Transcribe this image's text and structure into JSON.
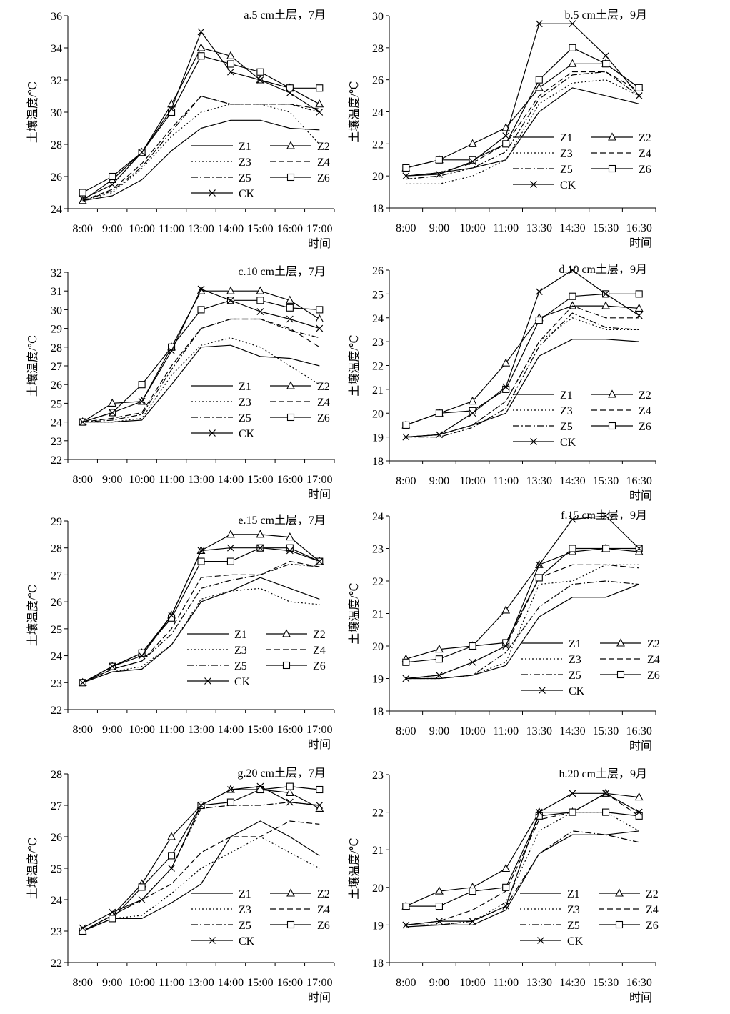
{
  "figure": {
    "x_axis_title": "时间",
    "y_axis_title": "土壤温度/℃",
    "series_names": [
      "Z1",
      "Z2",
      "Z3",
      "Z4",
      "Z5",
      "Z6",
      "CK"
    ],
    "series_styles": [
      {
        "name": "Z1",
        "dash": "solid",
        "marker": "none"
      },
      {
        "name": "Z2",
        "dash": "solid",
        "marker": "triangle"
      },
      {
        "name": "Z3",
        "dash": "dotted",
        "marker": "none"
      },
      {
        "name": "Z4",
        "dash": "dashed",
        "marker": "none"
      },
      {
        "name": "Z5",
        "dash": "dashdot",
        "marker": "none"
      },
      {
        "name": "Z6",
        "dash": "solid",
        "marker": "square"
      },
      {
        "name": "CK",
        "dash": "solid",
        "marker": "x"
      }
    ]
  },
  "chart_data": [
    {
      "panel": "a",
      "type": "line",
      "title": "a.5 cm土层，7月",
      "ylabel": "土壤温度/℃",
      "xlabel": "时间",
      "categories": [
        "8:00",
        "9:00",
        "10:00",
        "11:00",
        "13:00",
        "14:00",
        "15:00",
        "16:00",
        "17:00"
      ],
      "ylim": [
        24,
        36
      ],
      "yticks": [
        24,
        26,
        28,
        30,
        32,
        34,
        36
      ],
      "legend_position": "lower-right",
      "series": [
        {
          "name": "Z1",
          "values": [
            24.5,
            24.8,
            25.8,
            27.6,
            29.0,
            29.5,
            29.5,
            29.0,
            28.9
          ]
        },
        {
          "name": "Z2",
          "values": [
            24.5,
            25.8,
            27.5,
            30.5,
            34.0,
            33.5,
            32.0,
            31.5,
            30.5
          ]
        },
        {
          "name": "Z3",
          "values": [
            24.5,
            25.0,
            26.5,
            28.5,
            30.0,
            30.5,
            30.5,
            30.0,
            28.0
          ]
        },
        {
          "name": "Z4",
          "values": [
            24.5,
            25.2,
            26.8,
            29.0,
            31.0,
            30.5,
            30.5,
            30.5,
            30.2
          ]
        },
        {
          "name": "Z5",
          "values": [
            24.5,
            25.1,
            26.6,
            28.8,
            31.0,
            30.5,
            30.5,
            30.5,
            30.0
          ]
        },
        {
          "name": "Z6",
          "values": [
            25.0,
            26.0,
            27.5,
            30.0,
            33.5,
            33.0,
            32.5,
            31.5,
            31.5
          ]
        },
        {
          "name": "CK",
          "values": [
            24.6,
            25.5,
            27.5,
            30.2,
            35.0,
            32.5,
            32.0,
            31.2,
            30.0
          ]
        }
      ]
    },
    {
      "panel": "b",
      "type": "line",
      "title": "b.5 cm土层，9月",
      "ylabel": "土壤温度/℃",
      "xlabel": "时间",
      "categories": [
        "8:00",
        "9:00",
        "10:00",
        "11:00",
        "13:30",
        "14:30",
        "15:30",
        "16:30"
      ],
      "ylim": [
        18,
        30
      ],
      "yticks": [
        18,
        20,
        22,
        24,
        26,
        28,
        30
      ],
      "legend_position": "lower-right",
      "series": [
        {
          "name": "Z1",
          "values": [
            20.0,
            20.2,
            20.5,
            21.0,
            24.0,
            25.5,
            25.0,
            24.5
          ]
        },
        {
          "name": "Z2",
          "values": [
            20.5,
            21.0,
            22.0,
            23.0,
            25.5,
            27.0,
            27.0,
            25.5
          ]
        },
        {
          "name": "Z3",
          "values": [
            19.5,
            19.5,
            20.0,
            21.0,
            24.5,
            25.8,
            26.0,
            25.0
          ]
        },
        {
          "name": "Z4",
          "values": [
            20.0,
            20.2,
            20.8,
            22.0,
            25.0,
            26.5,
            26.5,
            25.3
          ]
        },
        {
          "name": "Z5",
          "values": [
            19.8,
            20.0,
            20.5,
            21.5,
            24.8,
            26.3,
            26.5,
            25.0
          ]
        },
        {
          "name": "Z6",
          "values": [
            20.5,
            21.0,
            21.0,
            22.0,
            26.0,
            28.0,
            27.0,
            25.5
          ]
        },
        {
          "name": "CK",
          "values": [
            20.0,
            20.1,
            20.9,
            22.5,
            29.5,
            29.5,
            27.5,
            25.0
          ]
        }
      ]
    },
    {
      "panel": "c",
      "type": "line",
      "title": "c.10 cm土层，7月",
      "ylabel": "土壤温度/℃",
      "xlabel": "时间",
      "categories": [
        "8:00",
        "9:00",
        "10:00",
        "11:00",
        "13:00",
        "14:00",
        "15:00",
        "16:00",
        "17:00"
      ],
      "ylim": [
        22,
        32
      ],
      "yticks": [
        22,
        23,
        24,
        25,
        26,
        27,
        28,
        29,
        30,
        31,
        32
      ],
      "legend_position": "lower-right",
      "series": [
        {
          "name": "Z1",
          "values": [
            24.0,
            24.0,
            24.1,
            26.0,
            28.0,
            28.1,
            27.5,
            27.4,
            27.0
          ]
        },
        {
          "name": "Z2",
          "values": [
            24.0,
            25.0,
            25.1,
            28.0,
            31.0,
            31.0,
            31.0,
            30.5,
            29.5
          ]
        },
        {
          "name": "Z3",
          "values": [
            24.0,
            24.0,
            24.2,
            26.5,
            28.1,
            28.5,
            28.0,
            27.0,
            26.0
          ]
        },
        {
          "name": "Z4",
          "values": [
            24.0,
            24.2,
            24.5,
            27.0,
            29.0,
            29.5,
            29.5,
            29.0,
            28.0
          ]
        },
        {
          "name": "Z5",
          "values": [
            24.0,
            24.1,
            24.4,
            26.8,
            29.0,
            29.5,
            29.5,
            28.9,
            28.5
          ]
        },
        {
          "name": "Z6",
          "values": [
            24.0,
            24.5,
            26.0,
            28.0,
            30.0,
            30.5,
            30.5,
            30.1,
            30.0
          ]
        },
        {
          "name": "CK",
          "values": [
            24.0,
            24.5,
            25.1,
            27.8,
            31.1,
            30.5,
            29.9,
            29.5,
            29.0
          ]
        }
      ]
    },
    {
      "panel": "d",
      "type": "line",
      "title": "d.10 cm土层，9月",
      "ylabel": "土壤温度/℃",
      "xlabel": "时间",
      "categories": [
        "8:00",
        "9:00",
        "10:00",
        "11:00",
        "13:30",
        "14:30",
        "15:30",
        "16:30"
      ],
      "ylim": [
        18,
        26
      ],
      "yticks": [
        18,
        19,
        20,
        21,
        22,
        23,
        24,
        25,
        26
      ],
      "legend_position": "lower-right",
      "series": [
        {
          "name": "Z1",
          "values": [
            19.0,
            19.1,
            19.5,
            20.0,
            22.4,
            23.1,
            23.1,
            23.0
          ]
        },
        {
          "name": "Z2",
          "values": [
            19.5,
            20.0,
            20.5,
            22.1,
            24.0,
            24.5,
            24.5,
            24.4
          ]
        },
        {
          "name": "Z3",
          "values": [
            19.0,
            19.1,
            19.5,
            20.5,
            23.0,
            24.0,
            23.5,
            23.5
          ]
        },
        {
          "name": "Z4",
          "values": [
            19.0,
            19.1,
            19.5,
            20.5,
            23.0,
            24.5,
            24.0,
            24.0
          ]
        },
        {
          "name": "Z5",
          "values": [
            19.0,
            19.0,
            19.4,
            20.2,
            22.8,
            24.2,
            23.6,
            23.5
          ]
        },
        {
          "name": "Z6",
          "values": [
            19.5,
            20.0,
            20.1,
            21.0,
            23.9,
            24.9,
            25.0,
            25.0
          ]
        },
        {
          "name": "CK",
          "values": [
            19.0,
            19.1,
            20.0,
            21.1,
            25.1,
            26.0,
            25.0,
            24.1
          ]
        }
      ]
    },
    {
      "panel": "e",
      "type": "line",
      "title": "e.15 cm土层，7月",
      "ylabel": "土壤温度/℃",
      "xlabel": "时间",
      "categories": [
        "8:00",
        "9:00",
        "10:00",
        "11:00",
        "13:00",
        "14:00",
        "15:00",
        "16:00",
        "17:00"
      ],
      "ylim": [
        22,
        29
      ],
      "yticks": [
        22,
        23,
        24,
        25,
        26,
        27,
        28,
        29
      ],
      "legend_position": "lower-right",
      "series": [
        {
          "name": "Z1",
          "values": [
            23.0,
            23.4,
            23.5,
            24.4,
            26.0,
            26.4,
            26.9,
            26.5,
            26.1
          ]
        },
        {
          "name": "Z2",
          "values": [
            23.0,
            23.6,
            24.1,
            25.5,
            27.9,
            28.5,
            28.5,
            28.4,
            27.5
          ]
        },
        {
          "name": "Z3",
          "values": [
            23.0,
            23.4,
            23.6,
            24.4,
            26.1,
            26.4,
            26.5,
            26.0,
            25.9
          ]
        },
        {
          "name": "Z4",
          "values": [
            23.0,
            23.5,
            23.8,
            25.0,
            26.9,
            27.0,
            27.0,
            27.5,
            27.3
          ]
        },
        {
          "name": "Z5",
          "values": [
            23.0,
            23.5,
            23.8,
            24.8,
            26.5,
            26.8,
            27.0,
            27.4,
            27.3
          ]
        },
        {
          "name": "Z6",
          "values": [
            23.0,
            23.6,
            24.1,
            25.4,
            27.5,
            27.5,
            28.0,
            28.0,
            27.5
          ]
        },
        {
          "name": "CK",
          "values": [
            23.0,
            23.6,
            24.0,
            25.5,
            27.9,
            28.0,
            28.0,
            27.9,
            27.5
          ]
        }
      ]
    },
    {
      "panel": "f",
      "type": "line",
      "title": "f.15 cm土层，9月",
      "ylabel": "土壤温度/℃",
      "xlabel": "时间",
      "categories": [
        "8:00",
        "9:00",
        "10:00",
        "11:00",
        "13:30",
        "14:30",
        "15:30",
        "16:30"
      ],
      "ylim": [
        18,
        24
      ],
      "yticks": [
        18,
        19,
        20,
        21,
        22,
        23,
        24
      ],
      "legend_position": "lower-right",
      "series": [
        {
          "name": "Z1",
          "values": [
            19.0,
            19.0,
            19.1,
            19.4,
            20.9,
            21.5,
            21.5,
            21.9
          ]
        },
        {
          "name": "Z2",
          "values": [
            19.6,
            19.9,
            20.0,
            21.1,
            22.5,
            22.9,
            23.0,
            22.9
          ]
        },
        {
          "name": "Z3",
          "values": [
            19.0,
            19.0,
            19.1,
            19.5,
            21.9,
            22.0,
            22.5,
            22.5
          ]
        },
        {
          "name": "Z4",
          "values": [
            19.0,
            19.1,
            19.5,
            20.0,
            22.1,
            22.5,
            22.5,
            22.4
          ]
        },
        {
          "name": "Z5",
          "values": [
            19.0,
            19.0,
            19.1,
            19.8,
            21.2,
            21.9,
            22.0,
            21.9
          ]
        },
        {
          "name": "Z6",
          "values": [
            19.5,
            19.6,
            20.0,
            20.1,
            22.1,
            23.0,
            23.0,
            23.0
          ]
        },
        {
          "name": "CK",
          "values": [
            19.0,
            19.1,
            19.5,
            20.0,
            22.5,
            23.9,
            24.0,
            23.0
          ]
        }
      ]
    },
    {
      "panel": "g",
      "type": "line",
      "title": "g.20 cm土层，7月",
      "ylabel": "土壤温度/℃",
      "xlabel": "时间",
      "categories": [
        "8:00",
        "9:00",
        "10:00",
        "11:00",
        "13:00",
        "14:00",
        "15:00",
        "16:00",
        "17:00"
      ],
      "ylim": [
        22,
        28
      ],
      "yticks": [
        22,
        23,
        24,
        25,
        26,
        27,
        28
      ],
      "legend_position": "lower-right",
      "series": [
        {
          "name": "Z1",
          "values": [
            23.0,
            23.4,
            23.4,
            23.9,
            24.5,
            26.0,
            26.5,
            26.0,
            25.4
          ]
        },
        {
          "name": "Z2",
          "values": [
            23.0,
            23.5,
            24.5,
            26.0,
            27.0,
            27.5,
            27.5,
            27.4,
            26.9
          ]
        },
        {
          "name": "Z3",
          "values": [
            23.0,
            23.4,
            23.5,
            24.2,
            25.0,
            25.5,
            26.0,
            25.5,
            25.0
          ]
        },
        {
          "name": "Z4",
          "values": [
            23.0,
            23.5,
            24.0,
            24.5,
            25.5,
            26.0,
            26.0,
            26.5,
            26.4
          ]
        },
        {
          "name": "Z5",
          "values": [
            23.0,
            23.5,
            24.0,
            25.0,
            26.9,
            27.0,
            27.0,
            27.1,
            27.0
          ]
        },
        {
          "name": "Z6",
          "values": [
            23.0,
            23.4,
            24.4,
            25.4,
            27.0,
            27.1,
            27.5,
            27.6,
            27.5
          ]
        },
        {
          "name": "CK",
          "values": [
            23.1,
            23.6,
            24.0,
            25.0,
            27.0,
            27.5,
            27.6,
            27.1,
            27.0
          ]
        }
      ]
    },
    {
      "panel": "h",
      "type": "line",
      "title": "h.20 cm土层，9月",
      "ylabel": "土壤温度/℃",
      "xlabel": "时间",
      "categories": [
        "8:00",
        "9:00",
        "10:00",
        "11:00",
        "13:30",
        "14:30",
        "15:30",
        "16:30"
      ],
      "ylim": [
        18,
        23
      ],
      "yticks": [
        18,
        19,
        20,
        21,
        22,
        23
      ],
      "legend_position": "lower-right",
      "series": [
        {
          "name": "Z1",
          "values": [
            18.95,
            19.0,
            19.0,
            19.4,
            20.9,
            21.4,
            21.4,
            21.5
          ]
        },
        {
          "name": "Z2",
          "values": [
            19.5,
            19.9,
            20.0,
            20.5,
            22.0,
            22.0,
            22.5,
            22.4
          ]
        },
        {
          "name": "Z3",
          "values": [
            19.0,
            19.0,
            19.1,
            19.6,
            21.5,
            22.0,
            22.0,
            21.5
          ]
        },
        {
          "name": "Z4",
          "values": [
            19.0,
            19.1,
            19.4,
            19.9,
            21.8,
            22.0,
            22.5,
            21.9
          ]
        },
        {
          "name": "Z5",
          "values": [
            19.0,
            19.0,
            19.1,
            19.5,
            20.9,
            21.5,
            21.4,
            21.2
          ]
        },
        {
          "name": "Z6",
          "values": [
            19.5,
            19.5,
            19.9,
            20.0,
            21.9,
            22.0,
            22.0,
            21.9
          ]
        },
        {
          "name": "CK",
          "values": [
            19.0,
            19.1,
            19.1,
            19.5,
            22.0,
            22.5,
            22.5,
            22.0
          ]
        }
      ]
    }
  ]
}
